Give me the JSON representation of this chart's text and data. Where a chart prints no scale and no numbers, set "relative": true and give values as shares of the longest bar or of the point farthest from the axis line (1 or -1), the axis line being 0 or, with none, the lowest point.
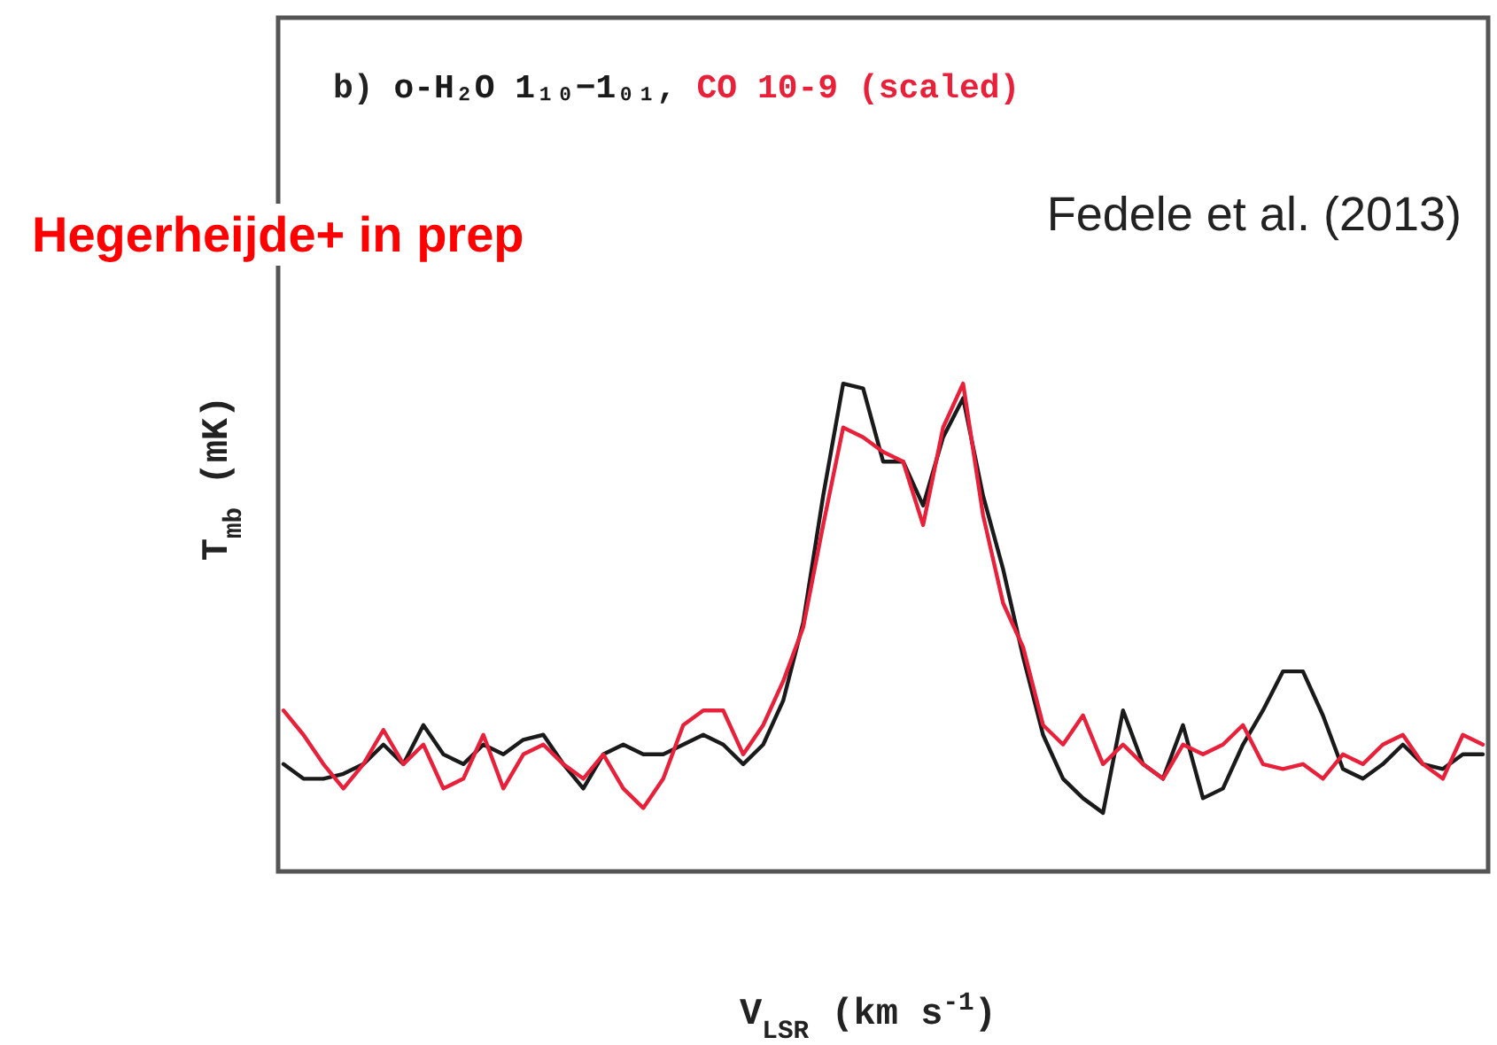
{
  "chart_data": {
    "type": "line",
    "title": "b)",
    "xlabel": "V$_{LSR}$ (km s$^{-1}$)",
    "ylabel": "T$_{mb}$ (mK)",
    "relative": true,
    "legend": "top left",
    "annotations": [
      "Fedele et al. (2013)",
      "Hegerheijde+ in prep"
    ],
    "categories": [
      null,
      null,
      null,
      null,
      null,
      null,
      null,
      null,
      null,
      null,
      null,
      null,
      null,
      null,
      null,
      null,
      null,
      null,
      null,
      null,
      null,
      null,
      null,
      null,
      null,
      null,
      null,
      null,
      null,
      null,
      null,
      null,
      null,
      null,
      null,
      null,
      null,
      null,
      null,
      null,
      null,
      null,
      null,
      null,
      null,
      null,
      null,
      null,
      null,
      null,
      null,
      null,
      null,
      null,
      null,
      null,
      null,
      null,
      null,
      null,
      null
    ],
    "series": [
      {
        "name": "o-H₂O 1₁₀−1₀₁,",
        "color": "#1a1a1a",
        "values": [
          0.22,
          0.19,
          0.19,
          0.2,
          0.22,
          0.26,
          0.22,
          0.3,
          0.24,
          0.22,
          0.26,
          0.24,
          0.27,
          0.28,
          0.22,
          0.17,
          0.24,
          0.26,
          0.24,
          0.24,
          0.26,
          0.28,
          0.26,
          0.22,
          0.26,
          0.35,
          0.51,
          0.77,
          1,
          0.99,
          0.84,
          0.84,
          0.75,
          0.89,
          0.97,
          0.77,
          0.62,
          0.44,
          0.28,
          0.19,
          0.15,
          0.12,
          0.33,
          0.22,
          0.19,
          0.3,
          0.15,
          0.17,
          0.26,
          0.33,
          0.41,
          0.41,
          0.32,
          0.21,
          0.19,
          0.22,
          0.26,
          0.22,
          0.21,
          0.24,
          0.24
        ]
      },
      {
        "name": "CO 10-9 (scaled)",
        "color": "#e8203a",
        "values": [
          0.33,
          0.28,
          0.22,
          0.17,
          0.22,
          0.29,
          0.22,
          0.26,
          0.17,
          0.19,
          0.28,
          0.17,
          0.24,
          0.26,
          0.22,
          0.19,
          0.24,
          0.17,
          0.13,
          0.19,
          0.3,
          0.33,
          0.33,
          0.24,
          0.3,
          0.39,
          0.5,
          0.71,
          0.91,
          0.89,
          0.86,
          0.84,
          0.71,
          0.91,
          1,
          0.73,
          0.55,
          0.46,
          0.3,
          0.26,
          0.32,
          0.22,
          0.26,
          0.22,
          0.19,
          0.26,
          0.24,
          0.26,
          0.3,
          0.22,
          0.21,
          0.22,
          0.19,
          0.24,
          0.22,
          0.26,
          0.28,
          0.22,
          0.19,
          0.28,
          0.26
        ]
      }
    ]
  }
}
